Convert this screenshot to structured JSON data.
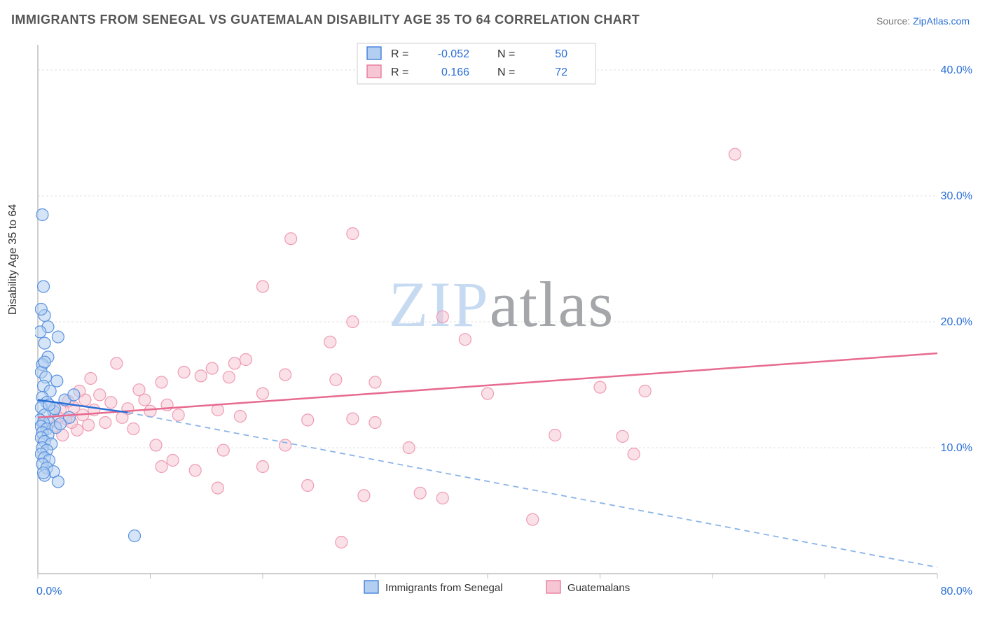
{
  "title": "IMMIGRANTS FROM SENEGAL VS GUATEMALAN DISABILITY AGE 35 TO 64 CORRELATION CHART",
  "source_label": "Source: ",
  "source_link": "ZipAtlas.com",
  "ylabel": "Disability Age 35 to 64",
  "watermark_zip": "ZIP",
  "watermark_atlas": "atlas",
  "chart": {
    "type": "scatter",
    "xlim": [
      0,
      80
    ],
    "ylim": [
      0,
      42
    ],
    "xticks": [
      0,
      10,
      20,
      30,
      40,
      50,
      60,
      70,
      80
    ],
    "yticks": [
      10,
      20,
      30,
      40
    ],
    "x_corner_label": "0.0%",
    "x_end_label": "80.0%",
    "y_tick_labels": [
      "10.0%",
      "20.0%",
      "30.0%",
      "40.0%"
    ],
    "background_color": "#ffffff",
    "grid_color": "#e0e0e0",
    "axis_color": "#bdbdbd",
    "tick_color": "#bdbdbd",
    "marker_radius": 8.5,
    "marker_stroke_width": 1.2,
    "series": [
      {
        "name": "Immigrants from Senegal",
        "swatch_fill": "#b2cef1",
        "swatch_stroke": "#2a6fd6",
        "marker_fill": "#b2cef1",
        "marker_fill_opacity": 0.55,
        "marker_stroke": "#5a93e0",
        "R": "-0.052",
        "N": "50",
        "trend_solid": {
          "x1": 0,
          "y1": 13.8,
          "x2": 8,
          "y2": 12.8
        },
        "trend_dash": {
          "x1": 8,
          "y1": 12.8,
          "x2": 80,
          "y2": 0.5
        },
        "points": [
          [
            0.4,
            28.5
          ],
          [
            0.5,
            22.8
          ],
          [
            0.6,
            20.5
          ],
          [
            0.9,
            19.6
          ],
          [
            0.6,
            18.3
          ],
          [
            1.8,
            18.8
          ],
          [
            0.9,
            17.2
          ],
          [
            0.4,
            16.6
          ],
          [
            0.3,
            16.0
          ],
          [
            0.7,
            15.6
          ],
          [
            1.7,
            15.3
          ],
          [
            0.5,
            14.9
          ],
          [
            1.1,
            14.5
          ],
          [
            0.4,
            14.0
          ],
          [
            0.8,
            13.6
          ],
          [
            0.3,
            13.2
          ],
          [
            1.4,
            12.9
          ],
          [
            0.6,
            12.6
          ],
          [
            0.2,
            12.2
          ],
          [
            1.0,
            12.0
          ],
          [
            0.5,
            12.0
          ],
          [
            0.3,
            11.7
          ],
          [
            0.8,
            11.5
          ],
          [
            1.6,
            11.6
          ],
          [
            0.4,
            11.2
          ],
          [
            0.9,
            11.0
          ],
          [
            0.3,
            10.8
          ],
          [
            0.6,
            10.5
          ],
          [
            1.2,
            10.3
          ],
          [
            0.4,
            10.0
          ],
          [
            0.8,
            9.8
          ],
          [
            0.3,
            9.5
          ],
          [
            0.6,
            9.2
          ],
          [
            1.0,
            9.0
          ],
          [
            0.4,
            8.7
          ],
          [
            0.8,
            8.4
          ],
          [
            1.4,
            8.1
          ],
          [
            0.6,
            7.8
          ],
          [
            1.8,
            7.3
          ],
          [
            2.4,
            13.8
          ],
          [
            2.8,
            12.4
          ],
          [
            3.2,
            14.2
          ],
          [
            1.5,
            13.1
          ],
          [
            2.0,
            11.9
          ],
          [
            0.2,
            19.2
          ],
          [
            0.3,
            21.0
          ],
          [
            0.6,
            16.8
          ],
          [
            1.0,
            13.4
          ],
          [
            8.6,
            3.0
          ],
          [
            0.5,
            8.0
          ]
        ]
      },
      {
        "name": "Guatemalans",
        "swatch_fill": "#f6c6d4",
        "swatch_stroke": "#e76a8f",
        "marker_fill": "#f6c6d4",
        "marker_fill_opacity": 0.55,
        "marker_stroke": "#ef9bb3",
        "R": "0.166",
        "N": "72",
        "trend_solid": {
          "x1": 0,
          "y1": 12.4,
          "x2": 80,
          "y2": 17.5
        },
        "points": [
          [
            62.0,
            33.3
          ],
          [
            28.0,
            27.0
          ],
          [
            22.5,
            26.6
          ],
          [
            20.0,
            22.8
          ],
          [
            28.0,
            20.0
          ],
          [
            36.0,
            20.4
          ],
          [
            50.0,
            14.8
          ],
          [
            52.0,
            10.9
          ],
          [
            53.0,
            9.5
          ],
          [
            40.0,
            14.3
          ],
          [
            38.0,
            18.6
          ],
          [
            33.0,
            10.0
          ],
          [
            30.0,
            15.2
          ],
          [
            30.0,
            12.0
          ],
          [
            28.0,
            12.3
          ],
          [
            26.5,
            15.4
          ],
          [
            26.0,
            18.4
          ],
          [
            24.0,
            12.2
          ],
          [
            24.0,
            7.0
          ],
          [
            22.0,
            15.8
          ],
          [
            22.0,
            10.2
          ],
          [
            20.0,
            14.3
          ],
          [
            20.0,
            8.5
          ],
          [
            18.5,
            17.0
          ],
          [
            18.0,
            12.5
          ],
          [
            17.5,
            16.7
          ],
          [
            17.0,
            15.6
          ],
          [
            16.5,
            9.8
          ],
          [
            16.0,
            13.0
          ],
          [
            15.5,
            16.3
          ],
          [
            14.5,
            15.7
          ],
          [
            14.0,
            8.2
          ],
          [
            13.0,
            16.0
          ],
          [
            12.5,
            12.6
          ],
          [
            12.0,
            9.0
          ],
          [
            11.5,
            13.4
          ],
          [
            11.0,
            15.2
          ],
          [
            10.5,
            10.2
          ],
          [
            10.0,
            12.9
          ],
          [
            9.5,
            13.8
          ],
          [
            9.0,
            14.6
          ],
          [
            8.5,
            11.5
          ],
          [
            8.0,
            13.1
          ],
          [
            7.5,
            12.4
          ],
          [
            7.0,
            16.7
          ],
          [
            6.5,
            13.6
          ],
          [
            6.0,
            12.0
          ],
          [
            5.5,
            14.2
          ],
          [
            5.0,
            13.0
          ],
          [
            4.7,
            15.5
          ],
          [
            4.5,
            11.8
          ],
          [
            4.2,
            13.8
          ],
          [
            4.0,
            12.6
          ],
          [
            3.7,
            14.5
          ],
          [
            3.5,
            11.4
          ],
          [
            3.2,
            13.2
          ],
          [
            3.0,
            12.0
          ],
          [
            2.7,
            13.7
          ],
          [
            2.5,
            12.3
          ],
          [
            2.2,
            11.0
          ],
          [
            2.0,
            13.0
          ],
          [
            1.8,
            12.4
          ],
          [
            1.5,
            11.7
          ],
          [
            27.0,
            2.5
          ],
          [
            29.0,
            6.2
          ],
          [
            34.0,
            6.4
          ],
          [
            36.0,
            6.0
          ],
          [
            44.0,
            4.3
          ],
          [
            46.0,
            11.0
          ],
          [
            54.0,
            14.5
          ],
          [
            16.0,
            6.8
          ],
          [
            11.0,
            8.5
          ]
        ]
      }
    ],
    "legend": {
      "R_label": "R =",
      "N_label": "N ="
    },
    "xlegend": [
      {
        "label": "Immigrants from Senegal"
      },
      {
        "label": "Guatemalans"
      }
    ]
  }
}
